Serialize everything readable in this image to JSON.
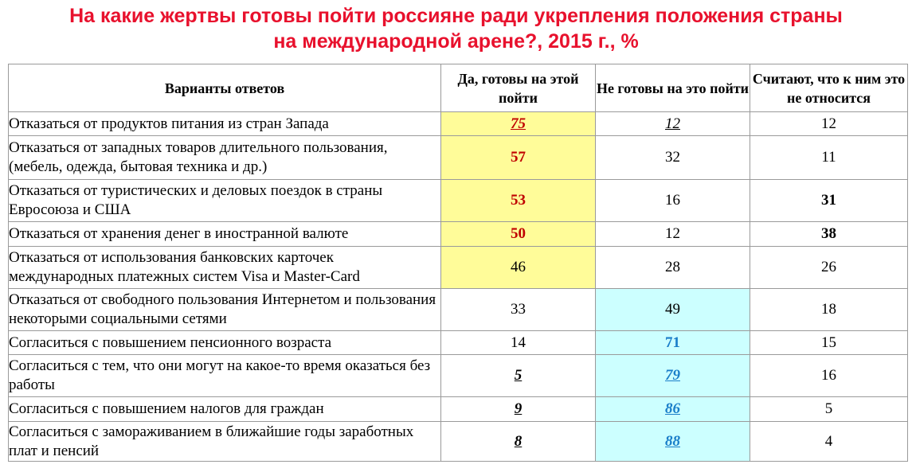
{
  "chart_data": {
    "type": "table",
    "title_line1": "На какие жертвы готовы пойти россияне ради укрепления положения страны",
    "title_line2": "на международной арене?, 2015 г., %",
    "columns": [
      "Варианты ответов",
      "Да, готовы на этой пойти",
      "Не готовы на это пойти",
      "Считают, что к ним это не относится"
    ],
    "rows": [
      {
        "label": "Отказаться от продуктов питания из стран Запада",
        "yes": "75",
        "no": "12",
        "na": "12"
      },
      {
        "label": "Отказаться от западных товаров длительного пользования, (мебель, одежда, бытовая техника и др.)",
        "yes": "57",
        "no": "32",
        "na": "11"
      },
      {
        "label": "Отказаться от туристических и деловых поездок в страны Евросоюза и США",
        "yes": "53",
        "no": "16",
        "na": "31"
      },
      {
        "label": "Отказаться от хранения денег в иностранной валюте",
        "yes": "50",
        "no": "12",
        "na": "38"
      },
      {
        "label": "Отказаться от использования банковских карточек международных платежных систем Visa и Master-Card",
        "yes": "46",
        "no": "28",
        "na": "26"
      },
      {
        "label": "Отказаться от свободного пользования Интернетом и пользования некоторыми социальными сетями",
        "yes": "33",
        "no": "49",
        "na": "18"
      },
      {
        "label": "Согласиться с повышением пенсионного возраста",
        "yes": "14",
        "no": "71",
        "na": "15"
      },
      {
        "label": "Согласиться с тем, что они могут на какое-то время оказаться без работы",
        "yes": "5",
        "no": "79",
        "na": "16"
      },
      {
        "label": "Согласиться с повышением налогов для граждан",
        "yes": "9",
        "no": "86",
        "na": "5"
      },
      {
        "label": "Согласиться с замораживанием в ближайшие годы заработных плат и пенсий",
        "yes": "8",
        "no": "88",
        "na": "4"
      }
    ],
    "highlight_colors": {
      "yes_highlight": "#fffc99",
      "no_highlight": "#ccffff",
      "red_text": "#c00000",
      "blue_text": "#1a7ec9",
      "title_color": "#e8112d"
    }
  }
}
